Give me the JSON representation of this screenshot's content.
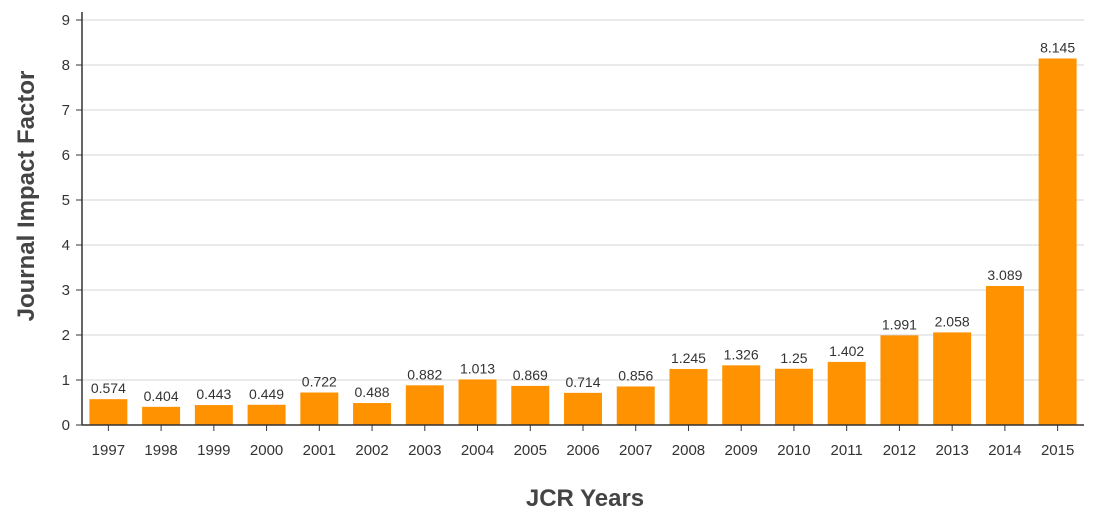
{
  "chart_data": {
    "type": "bar",
    "title": "",
    "xlabel": "JCR Years",
    "ylabel": "Journal Impact Factor",
    "ylim": [
      0,
      9
    ],
    "yticks": [
      0,
      1,
      2,
      3,
      4,
      5,
      6,
      7,
      8,
      9
    ],
    "grid": true,
    "bar_color": "#ff9200",
    "categories": [
      "1997",
      "1998",
      "1999",
      "2000",
      "2001",
      "2002",
      "2003",
      "2004",
      "2005",
      "2006",
      "2007",
      "2008",
      "2009",
      "2010",
      "2011",
      "2012",
      "2013",
      "2014",
      "2015"
    ],
    "values": [
      0.574,
      0.404,
      0.443,
      0.449,
      0.722,
      0.488,
      0.882,
      1.013,
      0.869,
      0.714,
      0.856,
      1.245,
      1.326,
      1.25,
      1.402,
      1.991,
      2.058,
      3.089,
      8.145
    ],
    "value_labels": [
      "0.574",
      "0.404",
      "0.443",
      "0.449",
      "0.722",
      "0.488",
      "0.882",
      "1.013",
      "0.869",
      "0.714",
      "0.856",
      "1.245",
      "1.326",
      "1.25",
      "1.402",
      "1.991",
      "2.058",
      "3.089",
      "8.145"
    ]
  }
}
